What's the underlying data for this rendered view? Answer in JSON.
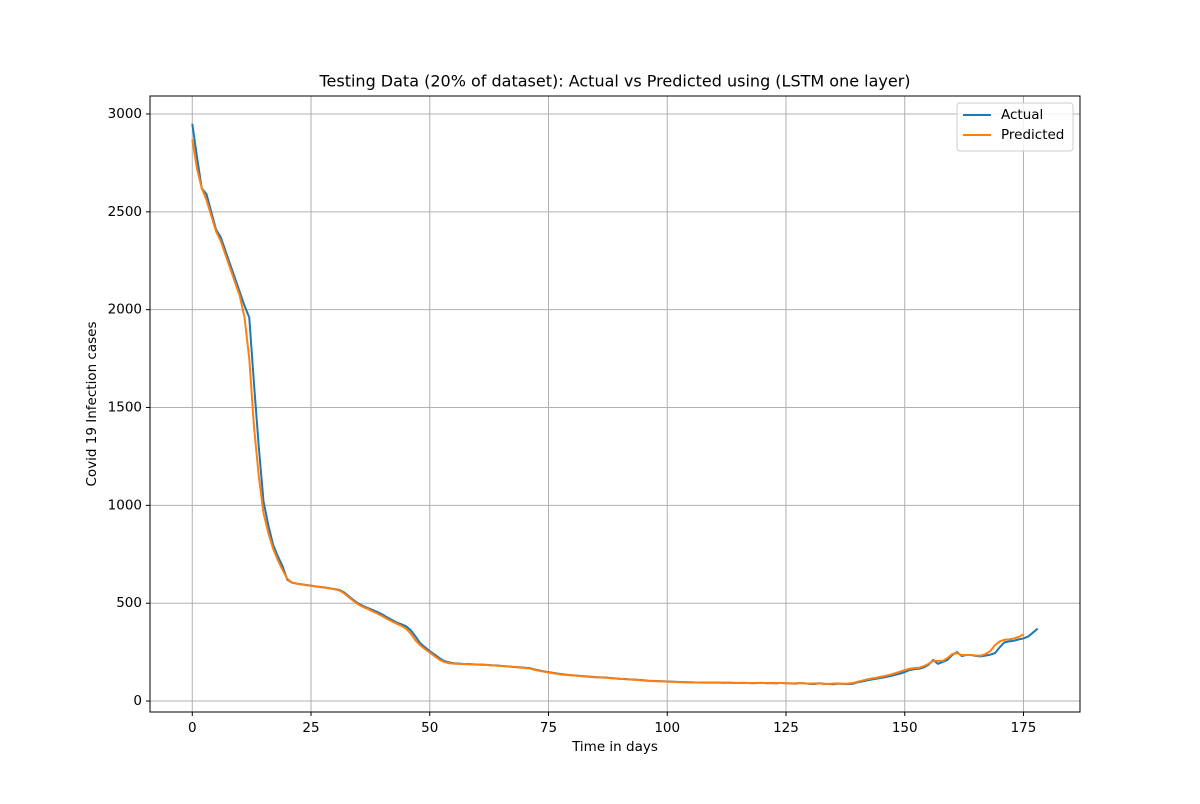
{
  "chart_data": {
    "type": "line",
    "title": "Testing Data (20% of dataset): Actual vs Predicted using (LSTM one layer)",
    "xlabel": "Time in days",
    "ylabel": "Covid 19 Infection cases",
    "x": [
      0,
      1,
      2,
      3,
      4,
      5,
      6,
      7,
      8,
      9,
      10,
      11,
      12,
      13,
      14,
      15,
      16,
      17,
      18,
      19,
      20,
      21,
      22,
      23,
      24,
      25,
      26,
      27,
      28,
      29,
      30,
      31,
      32,
      33,
      34,
      35,
      36,
      37,
      38,
      39,
      40,
      41,
      42,
      43,
      44,
      45,
      46,
      47,
      48,
      49,
      50,
      51,
      52,
      53,
      54,
      55,
      56,
      57,
      58,
      59,
      60,
      61,
      62,
      63,
      64,
      65,
      66,
      67,
      68,
      69,
      70,
      71,
      72,
      73,
      74,
      75,
      76,
      77,
      78,
      79,
      80,
      81,
      82,
      83,
      84,
      85,
      86,
      87,
      88,
      89,
      90,
      91,
      92,
      93,
      94,
      95,
      96,
      97,
      98,
      99,
      100,
      101,
      102,
      103,
      104,
      105,
      106,
      107,
      108,
      109,
      110,
      111,
      112,
      113,
      114,
      115,
      116,
      117,
      118,
      119,
      120,
      121,
      122,
      123,
      124,
      125,
      126,
      127,
      128,
      129,
      130,
      131,
      132,
      133,
      134,
      135,
      136,
      137,
      138,
      139,
      140,
      141,
      142,
      143,
      144,
      145,
      146,
      147,
      148,
      149,
      150,
      151,
      152,
      153,
      154,
      155,
      156,
      157,
      158,
      159,
      160,
      161,
      162,
      163,
      164,
      165,
      166,
      167,
      168,
      169,
      170,
      171,
      172,
      173,
      174,
      175,
      176,
      177,
      178
    ],
    "series": [
      {
        "name": "Actual",
        "color": "#1f77b4",
        "values": [
          2950,
          2780,
          2620,
          2590,
          2500,
          2410,
          2370,
          2300,
          2230,
          2160,
          2090,
          2020,
          1960,
          1620,
          1300,
          1020,
          900,
          800,
          740,
          690,
          620,
          605,
          600,
          597,
          593,
          590,
          586,
          583,
          580,
          576,
          572,
          568,
          555,
          535,
          515,
          498,
          485,
          475,
          465,
          455,
          443,
          428,
          415,
          402,
          393,
          382,
          362,
          330,
          295,
          275,
          255,
          238,
          220,
          205,
          198,
          193,
          192,
          190,
          189,
          188,
          187,
          186,
          185,
          183,
          182,
          180,
          178,
          176,
          174,
          172,
          170,
          168,
          162,
          157,
          152,
          148,
          144,
          140,
          137,
          134,
          132,
          130,
          128,
          126,
          124,
          122,
          121,
          120,
          118,
          116,
          114,
          113,
          111,
          110,
          108,
          106,
          104,
          103,
          102,
          101,
          100,
          99,
          98,
          97,
          96,
          96,
          95,
          95,
          94,
          94,
          95,
          94,
          93,
          94,
          93,
          92,
          93,
          92,
          91,
          92,
          93,
          91,
          92,
          90,
          93,
          91,
          90,
          89,
          92,
          90,
          88,
          87,
          91,
          88,
          87,
          86,
          89,
          88,
          87,
          88,
          95,
          100,
          105,
          110,
          114,
          118,
          123,
          128,
          134,
          140,
          148,
          158,
          163,
          165,
          172,
          185,
          210,
          190,
          200,
          210,
          235,
          250,
          230,
          235,
          235,
          230,
          228,
          232,
          237,
          245,
          275,
          300,
          305,
          308,
          315,
          320,
          330,
          350,
          370
        ]
      },
      {
        "name": "Predicted",
        "color": "#ff7f0e",
        "values": [
          2870,
          2720,
          2620,
          2560,
          2480,
          2400,
          2350,
          2280,
          2210,
          2140,
          2070,
          1960,
          1750,
          1400,
          1150,
          960,
          860,
          780,
          720,
          670,
          625,
          605,
          600,
          596,
          592,
          589,
          585,
          582,
          579,
          575,
          571,
          565,
          550,
          530,
          510,
          493,
          480,
          470,
          458,
          447,
          434,
          420,
          407,
          396,
          385,
          370,
          345,
          310,
          285,
          265,
          248,
          230,
          212,
          200,
          194,
          191,
          190,
          189,
          188,
          187,
          186,
          185,
          184,
          182,
          181,
          179,
          177,
          175,
          173,
          171,
          169,
          166,
          160,
          155,
          150,
          146,
          142,
          138,
          135,
          133,
          131,
          129,
          127,
          125,
          123,
          121,
          120,
          119,
          117,
          115,
          113,
          112,
          110,
          109,
          107,
          105,
          103,
          102,
          101,
          100,
          99,
          98,
          97,
          96,
          96,
          95,
          95,
          94,
          94,
          94,
          95,
          94,
          94,
          94,
          93,
          93,
          93,
          92,
          92,
          93,
          92,
          92,
          91,
          92,
          92,
          91,
          90,
          91,
          92,
          90,
          89,
          90,
          90,
          88,
          88,
          89,
          90,
          88,
          89,
          92,
          98,
          104,
          110,
          115,
          119,
          124,
          129,
          135,
          142,
          150,
          158,
          165,
          168,
          170,
          178,
          190,
          205,
          205,
          205,
          220,
          240,
          245,
          235,
          235,
          235,
          232,
          232,
          240,
          255,
          285,
          305,
          313,
          315,
          320,
          328,
          340,
          null,
          null,
          null
        ]
      }
    ],
    "xlim": [
      -8.9,
      186.9
    ],
    "ylim": [
      -56,
      3092
    ],
    "xticks": [
      0,
      25,
      50,
      75,
      100,
      125,
      150,
      175
    ],
    "yticks": [
      0,
      500,
      1000,
      1500,
      2000,
      2500,
      3000
    ],
    "grid": true,
    "legend": "upper right"
  }
}
